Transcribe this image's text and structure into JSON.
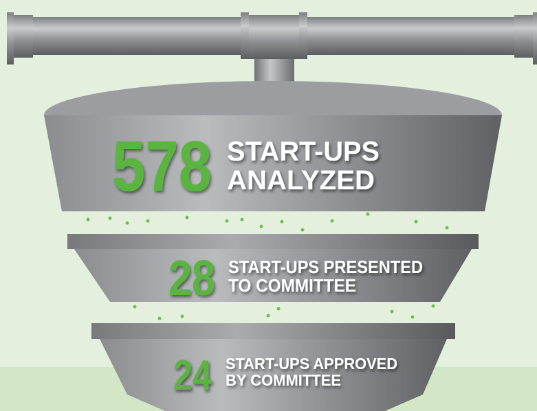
{
  "stages": [
    {
      "number": 578,
      "label_lines": [
        "START-UPS",
        "ANALYZED"
      ]
    },
    {
      "number": 28,
      "label_lines": [
        "START-UPS PRESENTED",
        "TO COMMITTEE"
      ]
    },
    {
      "number": 24,
      "label_lines": [
        "START-UPS APPROVED",
        "BY COMMITTEE"
      ]
    }
  ]
}
